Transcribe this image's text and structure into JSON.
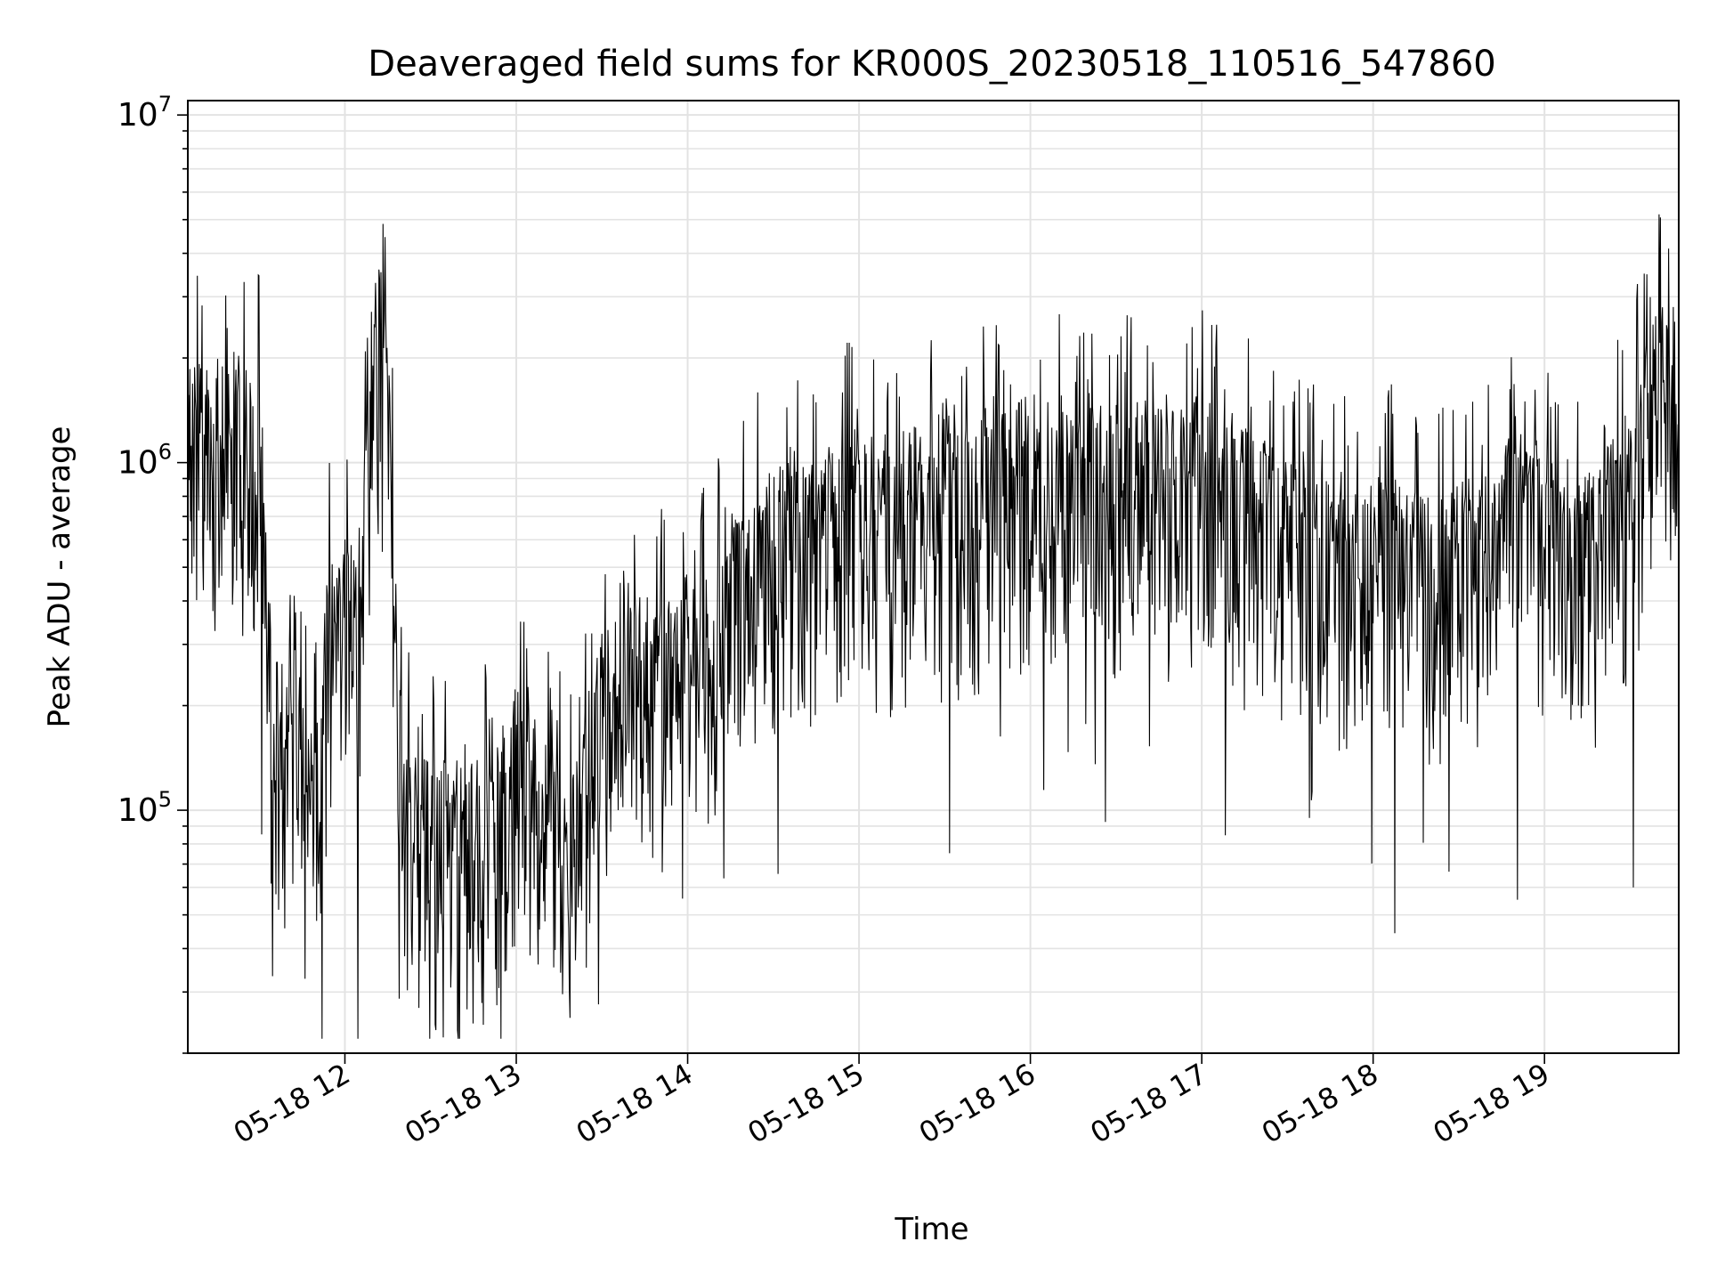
{
  "chart_data": {
    "type": "line",
    "title": "Deaveraged field sums for KR000S_20230518_110516_547860",
    "xlabel": "Time",
    "ylabel": "Peak ADU - average",
    "yscale": "log",
    "ylim": [
      20000,
      11000000
    ],
    "xlim": [
      "2023-05-18 11:05",
      "2023-05-18 19:47"
    ],
    "grid": true,
    "line_color": "#000000",
    "x_ticks": [
      "05-18 12",
      "05-18 13",
      "05-18 14",
      "05-18 15",
      "05-18 16",
      "05-18 17",
      "05-18 18",
      "05-18 19"
    ],
    "y_ticks": [
      {
        "base": "10",
        "exp": "5",
        "value": 100000
      },
      {
        "base": "10",
        "exp": "6",
        "value": 1000000
      },
      {
        "base": "10",
        "exp": "7",
        "value": 10000000
      }
    ],
    "series": [
      {
        "points": [
          [
            "11:05",
            1200000
          ],
          [
            "11:15",
            1300000
          ],
          [
            "11:25",
            1100000
          ],
          [
            "11:30",
            1200000
          ],
          [
            "11:35",
            180000
          ],
          [
            "11:40",
            150000
          ],
          [
            "11:50",
            110000
          ],
          [
            "11:55",
            400000
          ],
          [
            "12:00",
            500000
          ],
          [
            "12:05",
            300000
          ],
          [
            "12:10",
            2500000
          ],
          [
            "12:15",
            2000000
          ],
          [
            "12:20",
            100000
          ],
          [
            "12:30",
            90000
          ],
          [
            "12:40",
            85000
          ],
          [
            "12:50",
            90000
          ],
          [
            "13:00",
            150000
          ],
          [
            "13:10",
            100000
          ],
          [
            "13:20",
            90000
          ],
          [
            "13:30",
            200000
          ],
          [
            "13:40",
            300000
          ],
          [
            "13:50",
            250000
          ],
          [
            "14:00",
            300000
          ],
          [
            "14:10",
            350000
          ],
          [
            "14:20",
            500000
          ],
          [
            "14:30",
            600000
          ],
          [
            "14:40",
            650000
          ],
          [
            "14:50",
            700000
          ],
          [
            "15:00",
            800000
          ],
          [
            "15:10",
            700000
          ],
          [
            "15:20",
            800000
          ],
          [
            "15:30",
            900000
          ],
          [
            "15:40",
            850000
          ],
          [
            "15:50",
            900000
          ],
          [
            "16:00",
            1000000
          ],
          [
            "16:10",
            950000
          ],
          [
            "16:20",
            1000000
          ],
          [
            "16:30",
            950000
          ],
          [
            "16:40",
            1000000
          ],
          [
            "16:50",
            900000
          ],
          [
            "17:00",
            1000000
          ],
          [
            "17:10",
            900000
          ],
          [
            "17:20",
            750000
          ],
          [
            "17:30",
            650000
          ],
          [
            "17:40",
            600000
          ],
          [
            "17:50",
            550000
          ],
          [
            "18:00",
            600000
          ],
          [
            "18:10",
            550000
          ],
          [
            "18:20",
            500000
          ],
          [
            "18:30",
            550000
          ],
          [
            "18:40",
            600000
          ],
          [
            "18:50",
            800000
          ],
          [
            "19:00",
            700000
          ],
          [
            "19:10",
            500000
          ],
          [
            "19:20",
            700000
          ],
          [
            "19:30",
            900000
          ],
          [
            "19:40",
            2000000
          ],
          [
            "19:47",
            1500000
          ]
        ]
      }
    ]
  }
}
